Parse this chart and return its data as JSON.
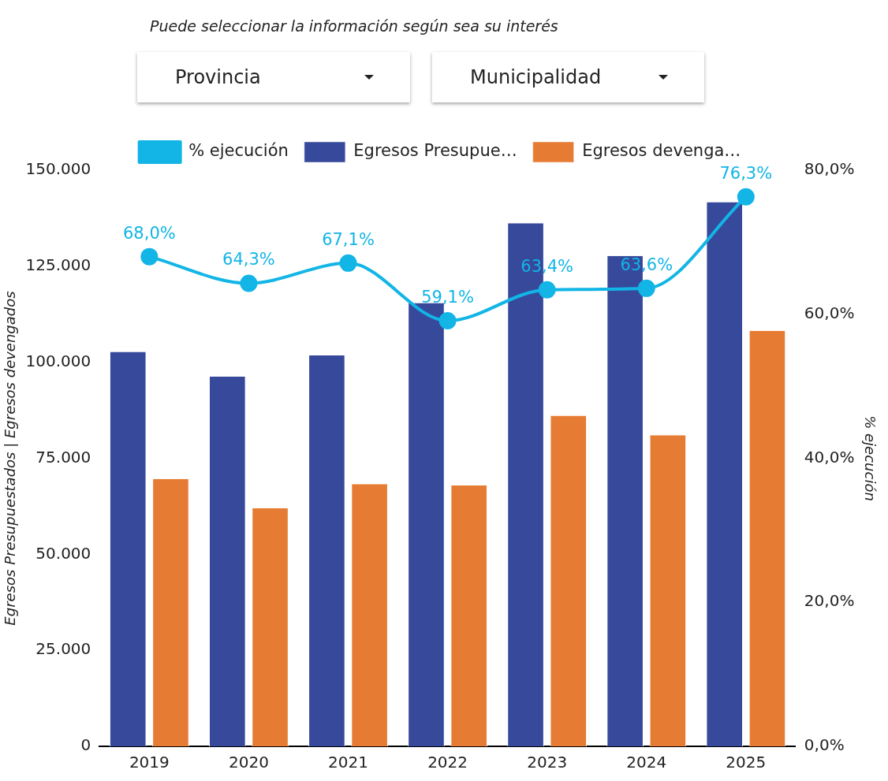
{
  "chart_data": {
    "type": "bar",
    "annotations": [
      "Puede seleccionar la información  según sea su interés",
      "Provincia",
      "Municipalidad"
    ],
    "categories": [
      "2019",
      "2020",
      "2021",
      "2022",
      "2023",
      "2024",
      "2025"
    ],
    "series": [
      {
        "name": "Egresos Presupue…",
        "color": "#36499b",
        "values": [
          102700,
          96300,
          101800,
          115400,
          136200,
          127700,
          141700
        ]
      },
      {
        "name": "Egresos devenga…",
        "color": "#e67c33",
        "values": [
          69600,
          62000,
          68300,
          67900,
          86100,
          81000,
          108200
        ]
      },
      {
        "name": "% ejecución",
        "type": "line",
        "axis": "y2",
        "color": "#12b5e6",
        "values": [
          68.0,
          64.3,
          67.1,
          59.1,
          63.4,
          63.6,
          76.3
        ],
        "value_labels": [
          "68,0%",
          "64,3%",
          "67,1%",
          "59,1%",
          "63,4%",
          "63,6%",
          "76,3%"
        ]
      }
    ],
    "ylabel": "Egresos Presupuestados | Egresos devengados",
    "y2label": "% ejecución",
    "ylim": [
      0,
      150000
    ],
    "yticks": [
      {
        "value": 0,
        "label": "0"
      },
      {
        "value": 25000,
        "label": "25.000"
      },
      {
        "value": 50000,
        "label": "50.000"
      },
      {
        "value": 75000,
        "label": "75.000"
      },
      {
        "value": 100000,
        "label": "100.000"
      },
      {
        "value": 125000,
        "label": "125.000"
      },
      {
        "value": 150000,
        "label": "150.000"
      }
    ],
    "y2lim": [
      0,
      80
    ],
    "y2ticks": [
      {
        "value": 0,
        "label": "0,0%"
      },
      {
        "value": 20,
        "label": "20,0%"
      },
      {
        "value": 40,
        "label": "40,0%"
      },
      {
        "value": 60,
        "label": "60,0%"
      },
      {
        "value": 80,
        "label": "80,0%"
      }
    ],
    "legend": "top",
    "marker": "circle"
  }
}
